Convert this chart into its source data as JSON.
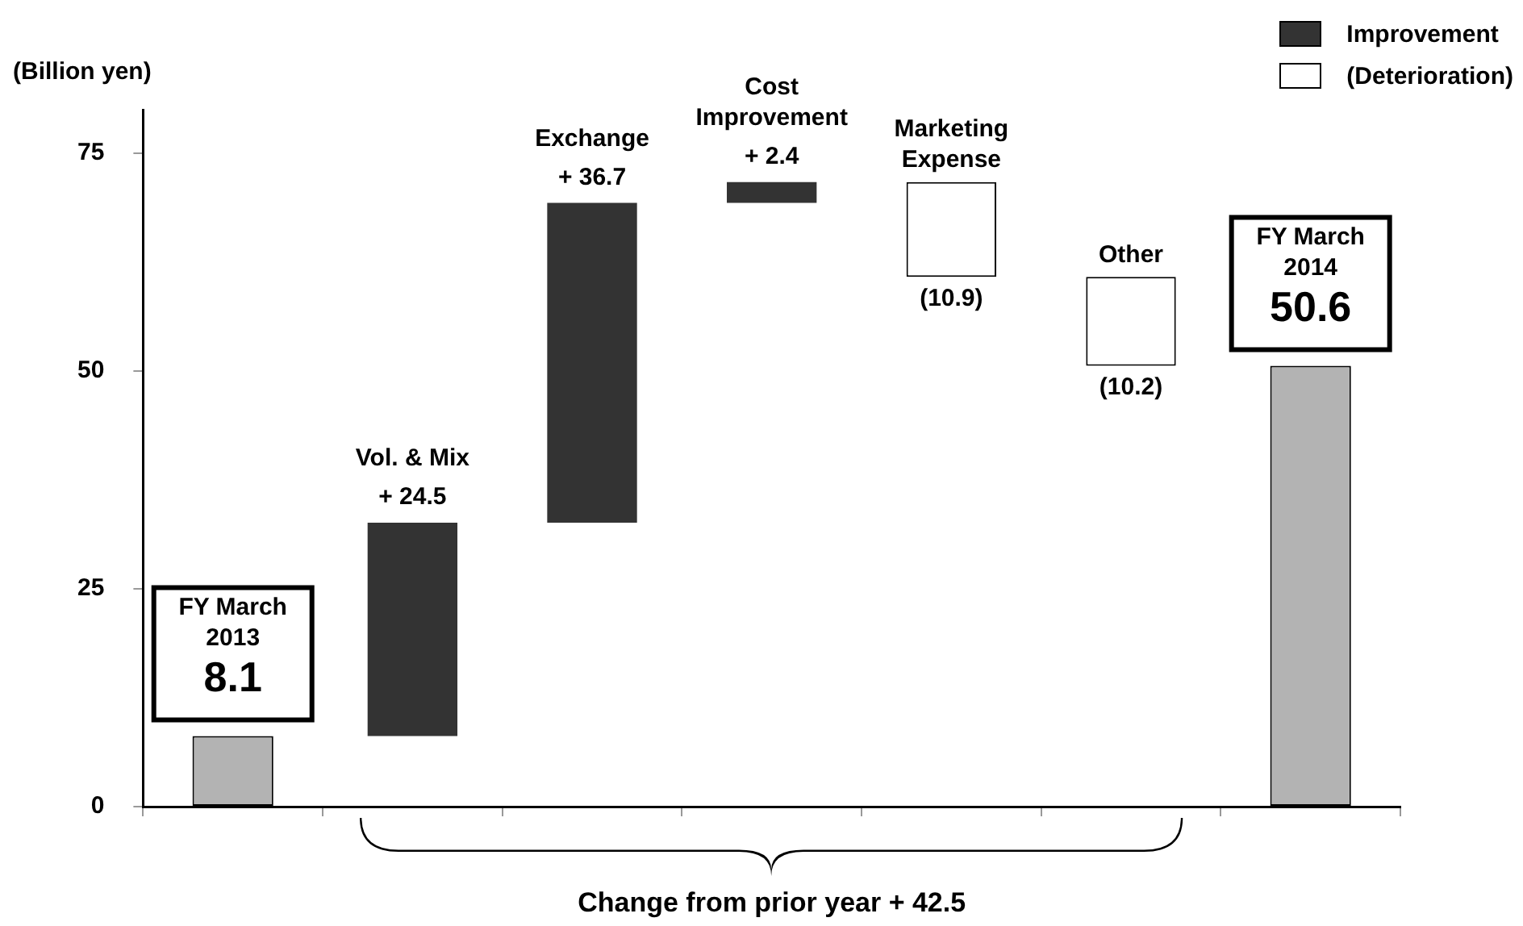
{
  "chart_data": {
    "type": "bar",
    "ylabel": "(Billion yen)",
    "categories": [
      "FY March 2013",
      "Vol. & Mix",
      "Exchange",
      "Cost Improvement",
      "Marketing Expense",
      "Other",
      "FY March 2014"
    ],
    "series": [
      {
        "color": "#b3b3b3",
        "values": [
          8.1,
          null,
          null,
          null,
          null,
          null,
          50.6
        ],
        "base": [
          0,
          null,
          null,
          null,
          null,
          null,
          0
        ],
        "value_labels": [
          "8.1",
          null,
          null,
          null,
          null,
          null,
          "50.6"
        ]
      },
      {
        "name": "Improvement",
        "color": "#333333",
        "values": [
          null,
          24.5,
          36.7,
          2.4,
          null,
          null,
          null
        ],
        "base": [
          null,
          8.1,
          32.6,
          69.3,
          null,
          null,
          null
        ],
        "value_labels": [
          null,
          "+ 24.5",
          "+ 36.7",
          "+ 2.4",
          null,
          null,
          null
        ]
      },
      {
        "name": "(Deterioration)",
        "color": "#ffffff",
        "values": [
          null,
          null,
          null,
          null,
          -10.9,
          -10.2,
          null
        ],
        "base": [
          null,
          null,
          null,
          null,
          71.7,
          60.8,
          null
        ],
        "value_labels": [
          null,
          null,
          null,
          null,
          "(10.9)",
          "(10.2)",
          null
        ]
      }
    ],
    "ylim": [
      0,
      80
    ],
    "yticks": [
      0,
      25,
      50,
      75
    ],
    "grid": false,
    "legend": "top right",
    "tick_labels": "y",
    "annotations": [
      "Change from prior year  + 42.5"
    ]
  }
}
